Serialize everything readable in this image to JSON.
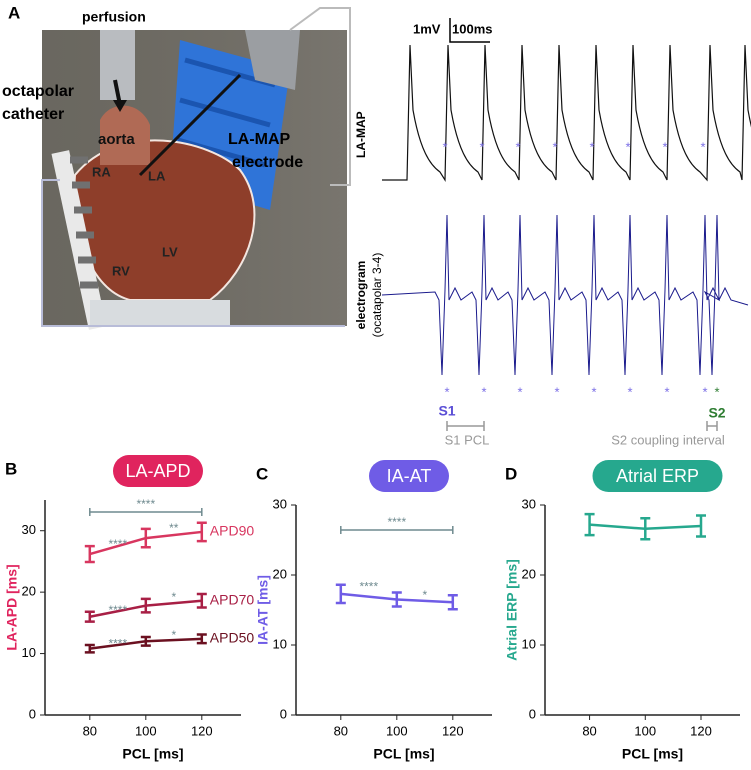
{
  "panel_a": {
    "letter": "A",
    "perfusion": "perfusion",
    "catheter": [
      "octapolar",
      "catheter"
    ],
    "aorta": "aorta",
    "electrode": [
      "LA-MAP",
      "electrode"
    ],
    "chambers": [
      "RA",
      "LA",
      "LV",
      "RV"
    ],
    "scale_mv": "1mV",
    "scale_ms": "100ms",
    "trace_1": "LA-MAP",
    "trace_2": [
      "electrogram",
      "(ocatapolar 3-4)"
    ],
    "star": "*",
    "s1": "S1",
    "s1_pcl": "S1 PCL",
    "s2": "S2",
    "s2_interval": "S2 coupling interval"
  },
  "chart_data": [
    {
      "type": "line",
      "letter": "B",
      "title": "LA-APD",
      "title_color": "#e0245e",
      "ylabel": "LA-APD [ms]",
      "xlabel": "PCL [ms]",
      "x": [
        80,
        100,
        120
      ],
      "xlim": [
        64,
        134
      ],
      "xticks": [
        80,
        100,
        120
      ],
      "ylim": [
        0,
        35
      ],
      "yticks": [
        0,
        10,
        20,
        30
      ],
      "series": [
        {
          "name": "APD90",
          "color": "#d8365f",
          "values": [
            26.2,
            28.8,
            29.8
          ],
          "errors": [
            1.3,
            1.5,
            1.5
          ]
        },
        {
          "name": "APD70",
          "color": "#a81f45",
          "values": [
            16.0,
            17.8,
            18.6
          ],
          "errors": [
            0.8,
            1.1,
            1.1
          ]
        },
        {
          "name": "APD50",
          "color": "#6b1020",
          "values": [
            10.8,
            12.0,
            12.4
          ],
          "errors": [
            0.6,
            0.7,
            0.7
          ]
        }
      ],
      "annotations": [
        "****",
        "****",
        "**",
        "****",
        "*",
        "****",
        "*"
      ]
    },
    {
      "type": "line",
      "letter": "C",
      "title": "IA-AT",
      "title_color": "#6f5ce6",
      "ylabel": "IA-AT [ms]",
      "xlabel": "PCL [ms]",
      "x": [
        80,
        100,
        120
      ],
      "xlim": [
        64,
        134
      ],
      "xticks": [
        80,
        100,
        120
      ],
      "ylim": [
        0,
        30
      ],
      "yticks": [
        0,
        10,
        20,
        30
      ],
      "series": [
        {
          "color": "#6f5ce6",
          "values": [
            17.3,
            16.5,
            16.1
          ],
          "errors": [
            1.3,
            1.0,
            1.0
          ]
        }
      ],
      "annotations": [
        "****",
        "****",
        "*"
      ]
    },
    {
      "type": "line",
      "letter": "D",
      "title": "Atrial ERP",
      "title_color": "#26a88e",
      "ylabel": "Atrial ERP [ms]",
      "xlabel": "PCL [ms]",
      "x": [
        80,
        100,
        120
      ],
      "xlim": [
        64,
        134
      ],
      "xticks": [
        80,
        100,
        120
      ],
      "ylim": [
        0,
        30
      ],
      "yticks": [
        0,
        10,
        20,
        30
      ],
      "series": [
        {
          "color": "#26a88e",
          "values": [
            27.2,
            26.6,
            27.0
          ],
          "errors": [
            1.5,
            1.5,
            1.5
          ]
        }
      ],
      "annotations": []
    }
  ]
}
